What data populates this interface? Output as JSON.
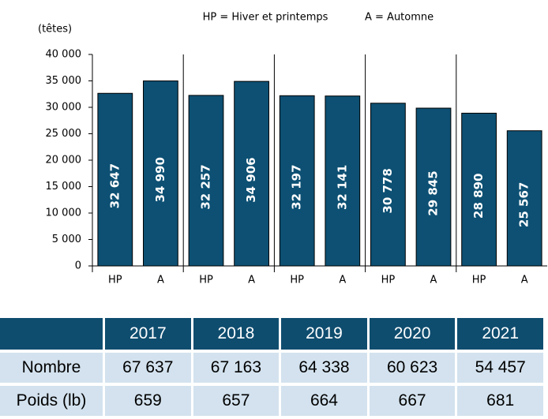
{
  "chart_data": {
    "type": "bar",
    "annotations": [
      "HP = Hiver et printemps",
      "A = Automne"
    ],
    "y_label": "(têtes)",
    "categories": [
      "HP",
      "A",
      "HP",
      "A",
      "HP",
      "A",
      "HP",
      "A",
      "HP",
      "A"
    ],
    "values": [
      32647,
      34990,
      32257,
      34906,
      32197,
      32141,
      30778,
      29845,
      28890,
      25567
    ],
    "value_labels": [
      "32 647",
      "34 990",
      "32 257",
      "34 906",
      "32 197",
      "32 141",
      "30 778",
      "29 845",
      "28 890",
      "25 567"
    ],
    "color": "#0d5073",
    "ylim": [
      0,
      40000
    ],
    "yticks": [
      0,
      {
        "value": 5000,
        "label": "5 000"
      },
      {
        "value": 10000,
        "label": "10 000"
      },
      {
        "value": 15000,
        "label": "15 000"
      },
      {
        "value": 20000,
        "label": "20 000"
      },
      {
        "value": 25000,
        "label": "25 000"
      },
      {
        "value": 30000,
        "label": "30 000"
      },
      {
        "value": 35000,
        "label": "35 000"
      },
      {
        "value": 40000,
        "label": "40 000"
      }
    ]
  },
  "table": {
    "header": [
      "2017",
      "2018",
      "2019",
      "2020",
      "2021"
    ],
    "rows": [
      [
        "Nombre",
        "67 637",
        "67 163",
        "64 338",
        "60 623",
        "54 457"
      ],
      [
        "Poids (lb)",
        "659",
        "657",
        "664",
        "667",
        "681"
      ]
    ]
  }
}
